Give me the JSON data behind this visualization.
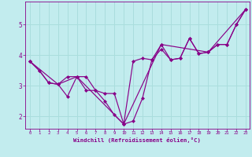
{
  "xlabel": "Windchill (Refroidissement éolien,°C)",
  "background_color": "#c2ecee",
  "line_color": "#880088",
  "grid_color": "#aadddd",
  "xlim": [
    -0.5,
    23.4
  ],
  "ylim": [
    1.6,
    5.75
  ],
  "xticks": [
    0,
    1,
    2,
    3,
    4,
    5,
    6,
    7,
    8,
    9,
    10,
    11,
    12,
    13,
    14,
    15,
    16,
    17,
    18,
    19,
    20,
    21,
    22,
    23
  ],
  "yticks": [
    2,
    3,
    4,
    5
  ],
  "series1_x": [
    0,
    1,
    2,
    3,
    4,
    5,
    6,
    7,
    8,
    9,
    10,
    11,
    12,
    13,
    14,
    15,
    16,
    17,
    18,
    19,
    20,
    21,
    22,
    23
  ],
  "series1_y": [
    3.8,
    3.5,
    3.1,
    3.05,
    2.65,
    3.3,
    2.85,
    2.85,
    2.5,
    2.05,
    1.75,
    1.85,
    2.6,
    3.85,
    4.35,
    3.85,
    3.9,
    4.55,
    4.05,
    4.1,
    4.35,
    4.35,
    5.0,
    5.5
  ],
  "series2_x": [
    0,
    1,
    2,
    3,
    4,
    5,
    6,
    7,
    8,
    9,
    10,
    11,
    12,
    13,
    14,
    15,
    16,
    17,
    18,
    19,
    20,
    21,
    22,
    23
  ],
  "series2_y": [
    3.8,
    3.5,
    3.1,
    3.05,
    3.3,
    3.3,
    3.3,
    2.85,
    2.75,
    2.75,
    1.75,
    3.8,
    3.9,
    3.85,
    4.2,
    3.85,
    3.9,
    4.55,
    4.05,
    4.1,
    4.35,
    4.35,
    5.0,
    5.5
  ],
  "series3_x": [
    0,
    3,
    5,
    10,
    14,
    19,
    23
  ],
  "series3_y": [
    3.8,
    3.05,
    3.3,
    1.75,
    4.35,
    4.1,
    5.5
  ]
}
